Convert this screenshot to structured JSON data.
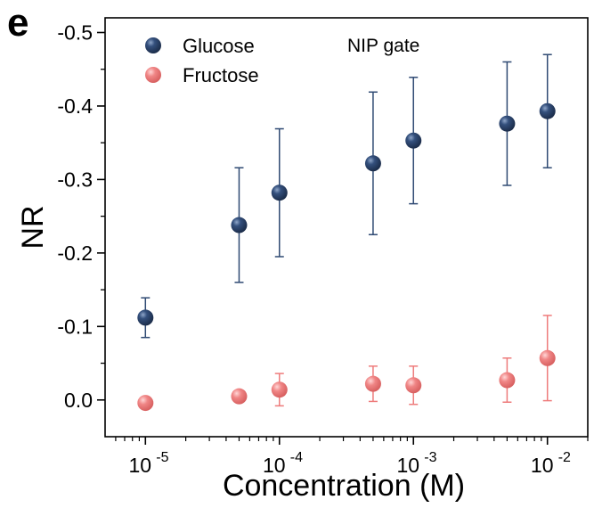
{
  "panel_label": "e",
  "chart_data": {
    "type": "scatter",
    "x_scale": "log",
    "y_axis_inverted": true,
    "xlabel": "Concentration (M)",
    "ylabel": "NR",
    "annotation": "NIP gate",
    "xlim": [
      5e-06,
      0.02
    ],
    "ylim": [
      0.05,
      -0.52
    ],
    "x_ticks": [
      {
        "value": 1e-05,
        "base": "10",
        "exp": "-5"
      },
      {
        "value": 0.0001,
        "base": "10",
        "exp": "-4"
      },
      {
        "value": 0.001,
        "base": "10",
        "exp": "-3"
      },
      {
        "value": 0.01,
        "base": "10",
        "exp": "-2"
      }
    ],
    "y_ticks": [
      {
        "value": 0.0,
        "label": "0.0"
      },
      {
        "value": -0.1,
        "label": "-0.1"
      },
      {
        "value": -0.2,
        "label": "-0.2"
      },
      {
        "value": -0.3,
        "label": "-0.3"
      },
      {
        "value": -0.4,
        "label": "-0.4"
      },
      {
        "value": -0.5,
        "label": "-0.5"
      }
    ],
    "legend_position": "top-left",
    "series": [
      {
        "name": "Glucose",
        "color": "#2f4a73",
        "x": [
          1e-05,
          5e-05,
          0.0001,
          0.0005,
          0.001,
          0.005,
          0.01
        ],
        "y": [
          -0.112,
          -0.238,
          -0.282,
          -0.322,
          -0.353,
          -0.376,
          -0.393
        ],
        "err": [
          0.027,
          0.078,
          0.087,
          0.097,
          0.086,
          0.084,
          0.077
        ]
      },
      {
        "name": "Fructose",
        "color": "#ee7b7b",
        "x": [
          1e-05,
          5e-05,
          0.0001,
          0.0005,
          0.001,
          0.005,
          0.01
        ],
        "y": [
          0.004,
          -0.005,
          -0.014,
          -0.022,
          -0.02,
          -0.027,
          -0.057
        ],
        "err": [
          0.0,
          0.005,
          0.022,
          0.024,
          0.026,
          0.03,
          0.058
        ]
      }
    ]
  }
}
